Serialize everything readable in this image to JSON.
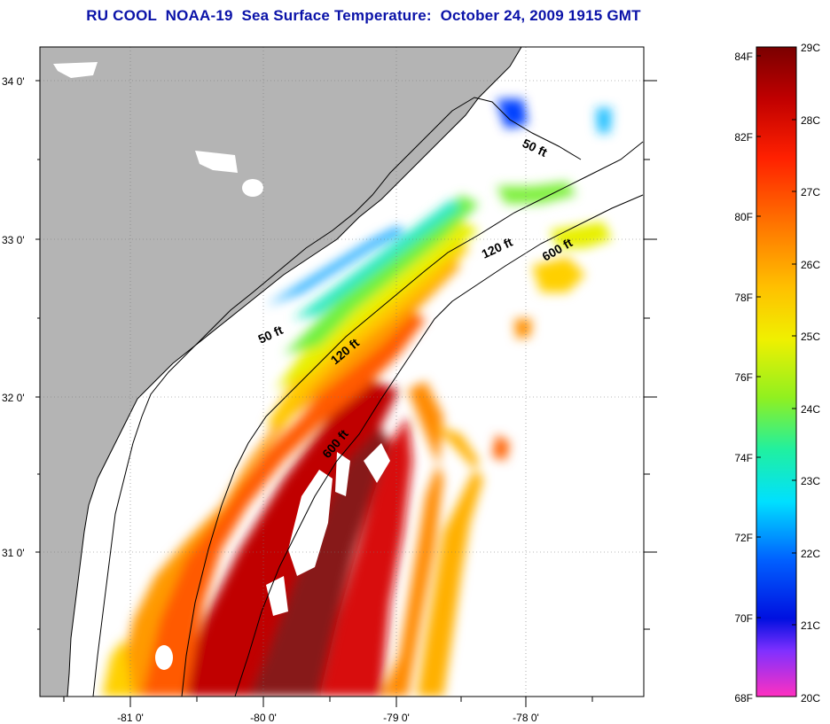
{
  "title": "RU COOL  NOAA-19  Sea Surface Temperature:  October 24, 2009 1915 GMT",
  "lat_labels": [
    "34 0'",
    "33 0'",
    "32 0'",
    "31 0'"
  ],
  "lon_labels": [
    "-81 0'",
    "-80 0'",
    "-79 0'",
    "-78 0'"
  ],
  "isobaths": [
    "50 ft",
    "50 ft",
    "120 ft",
    "120 ft",
    "600 ft",
    "600 ft"
  ],
  "colorbar": {
    "fahrenheit": [
      "84F",
      "82F",
      "80F",
      "78F",
      "76F",
      "74F",
      "72F",
      "70F",
      "68F"
    ],
    "celsius": [
      "29C",
      "28C",
      "27C",
      "26C",
      "25C",
      "24C",
      "23C",
      "22C",
      "21C",
      "20C"
    ],
    "stops": [
      "#7a0000",
      "#c00000",
      "#ff2000",
      "#ff7a00",
      "#ffc000",
      "#f0f000",
      "#90f020",
      "#20f0a0",
      "#00e0ff",
      "#0060ff",
      "#0010e0",
      "#8030ff",
      "#ff30c0"
    ]
  },
  "colors": {
    "land": "#b4b4b4",
    "title": "#0a12a8"
  }
}
